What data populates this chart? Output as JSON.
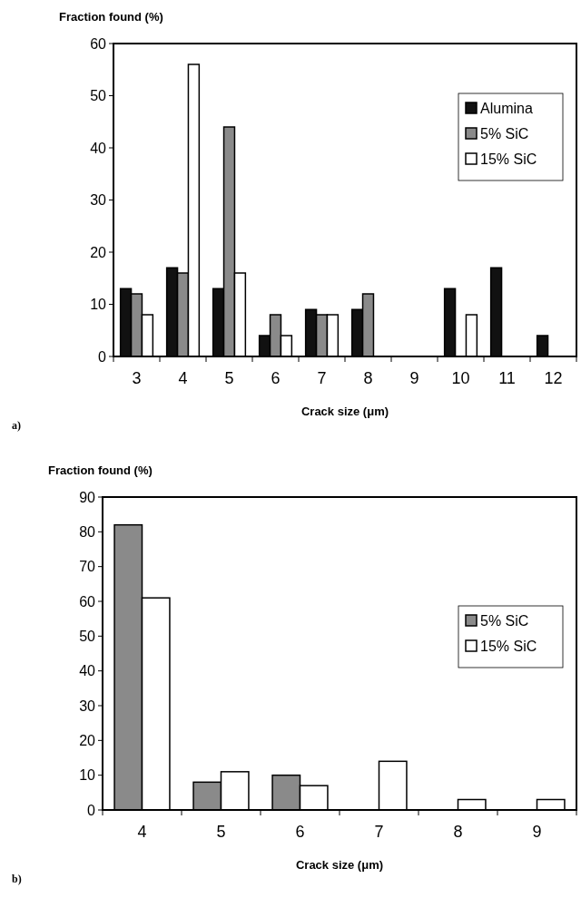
{
  "chart_data": [
    {
      "type": "bar",
      "ylabel": "Fraction found (%)",
      "xlabel": "Crack size (μm)",
      "annotations": [
        "a)"
      ],
      "categories": [
        "3",
        "4",
        "5",
        "6",
        "7",
        "8",
        "9",
        "10",
        "11",
        "12"
      ],
      "series": [
        {
          "name": "Alumina",
          "color": "#111111",
          "values": [
            13,
            17,
            13,
            4,
            9,
            9,
            0,
            13,
            17,
            4
          ]
        },
        {
          "name": "5% SiC",
          "color": "#8a8a8a",
          "values": [
            12,
            16,
            44,
            8,
            8,
            12,
            0,
            0,
            0,
            0
          ]
        },
        {
          "name": "15% SiC",
          "color": "#ffffff",
          "values": [
            8,
            56,
            16,
            4,
            8,
            0,
            0,
            8,
            0,
            0
          ]
        }
      ],
      "ylim": [
        0,
        60
      ],
      "yticks": [
        0,
        10,
        20,
        30,
        40,
        50,
        60
      ],
      "grid": false,
      "legend": "top right"
    },
    {
      "type": "bar",
      "ylabel": "Fraction found (%)",
      "xlabel": "Crack size (μm)",
      "annotations": [
        "b)"
      ],
      "categories": [
        "4",
        "5",
        "6",
        "7",
        "8",
        "9"
      ],
      "series": [
        {
          "name": "5% SiC",
          "color": "#8a8a8a",
          "values": [
            82,
            8,
            10,
            0,
            0,
            0
          ]
        },
        {
          "name": "15% SiC",
          "color": "#ffffff",
          "values": [
            61,
            11,
            7,
            14,
            3,
            3
          ]
        }
      ],
      "ylim": [
        0,
        90
      ],
      "yticks": [
        0,
        10,
        20,
        30,
        40,
        50,
        60,
        70,
        80,
        90
      ],
      "grid": false,
      "legend": "right"
    }
  ]
}
